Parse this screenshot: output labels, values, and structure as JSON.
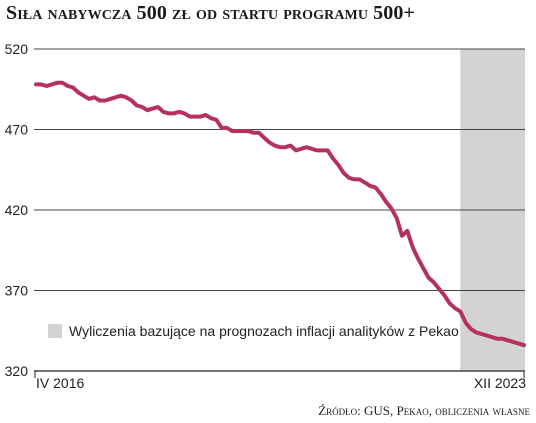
{
  "title": "Siła nabywcza 500 zł od startu programu 500+",
  "source": "Źródło: GUS, Pekao, obliczenia własne",
  "legend": {
    "forecast_label": "Wyliczenia bazujące na prognozach inflacji analityków z Pekao"
  },
  "colors": {
    "line": "#b5335a",
    "forecast_band": "#d3d3d3",
    "grid": "#444444"
  },
  "chart_data": {
    "type": "line",
    "title": "Siła nabywcza 500 zł od startu programu 500+",
    "xlabel": "",
    "ylabel": "",
    "x_tick_labels": [
      "IV 2016",
      "XII 2023"
    ],
    "ylim": [
      320,
      520
    ],
    "y_ticks": [
      320,
      370,
      420,
      470,
      520
    ],
    "grid": "horizontal",
    "forecast_band_start_index": 80,
    "series": [
      {
        "values": [
          498,
          498,
          497,
          498,
          499,
          499,
          497,
          496,
          493,
          491,
          489,
          490,
          488,
          488,
          489,
          490,
          491,
          490,
          488,
          485,
          484,
          482,
          483,
          484,
          481,
          480,
          480,
          481,
          480,
          478,
          478,
          478,
          479,
          477,
          476,
          471,
          471,
          469,
          469,
          469,
          469,
          468,
          468,
          465,
          462,
          460,
          459,
          459,
          460,
          457,
          458,
          459,
          458,
          457,
          457,
          457,
          452,
          448,
          443,
          440,
          439,
          439,
          437,
          435,
          434,
          430,
          425,
          421,
          415,
          404,
          407,
          397,
          390,
          384,
          378,
          375,
          371,
          367,
          362,
          359,
          357,
          350,
          346,
          344,
          343,
          342,
          341,
          340,
          340,
          339,
          338,
          337,
          336
        ]
      }
    ]
  }
}
